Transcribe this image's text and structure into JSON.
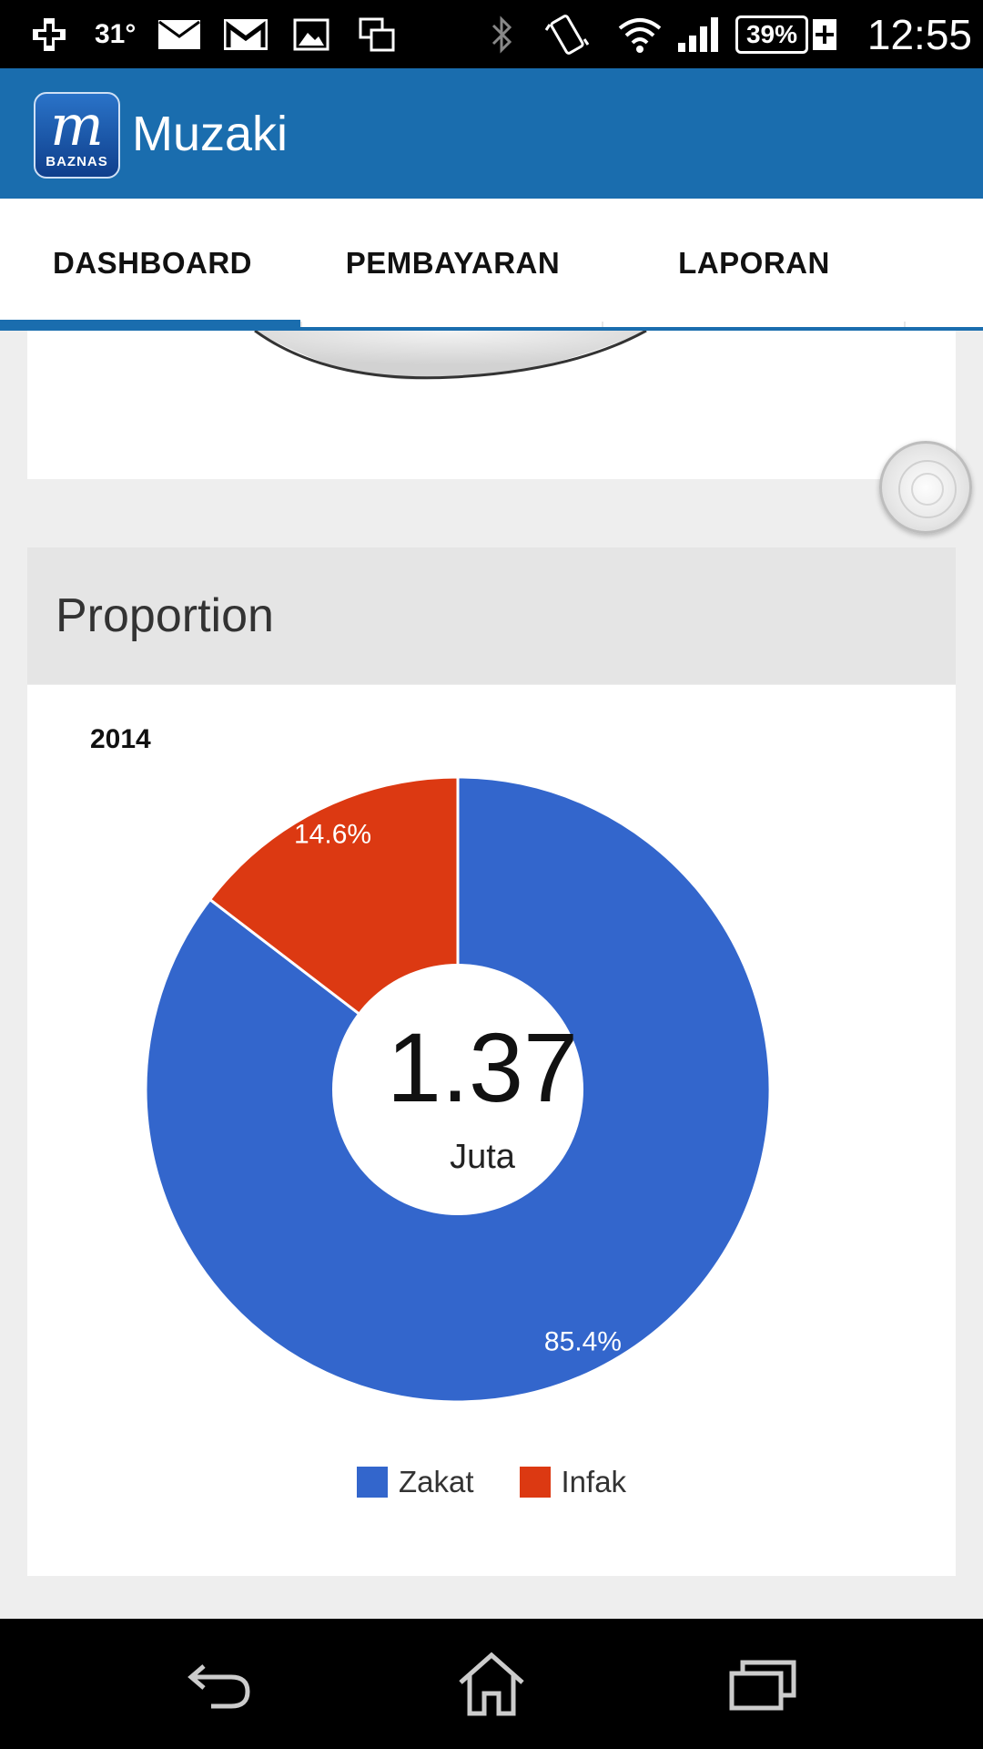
{
  "status_bar": {
    "temperature": "31°",
    "battery": "39%",
    "time": "12:55",
    "icons": [
      "add-icon",
      "mail-icon",
      "gmail-icon",
      "image-icon",
      "screen-mirror-icon",
      "bluetooth-icon",
      "vibrate-icon",
      "wifi-icon",
      "signal-icon",
      "battery-icon"
    ]
  },
  "app_bar": {
    "logo_letter": "m",
    "logo_text": "BAZNAS",
    "title": "Muzaki"
  },
  "tabs": [
    {
      "label": "DASHBOARD",
      "active": true
    },
    {
      "label": "PEMBAYARAN",
      "active": false
    },
    {
      "label": "LAPORAN",
      "active": false
    }
  ],
  "proportion_card": {
    "title": "Proportion"
  },
  "chart_data": {
    "type": "pie",
    "title": "2014",
    "center_value": "1.37",
    "center_unit": "Juta",
    "categories": [
      "Zakat",
      "Infak"
    ],
    "values": [
      85.4,
      14.6
    ],
    "data_labels": [
      "85.4%",
      "14.6%"
    ],
    "colors": [
      "#3366cc",
      "#dc3912"
    ],
    "legend_position": "bottom"
  },
  "nav_bar": {
    "icons": [
      "back-icon",
      "home-icon",
      "recent-apps-icon"
    ]
  },
  "colors": {
    "primary": "#1a6dae",
    "zakat": "#3366cc",
    "infak": "#dc3912"
  }
}
